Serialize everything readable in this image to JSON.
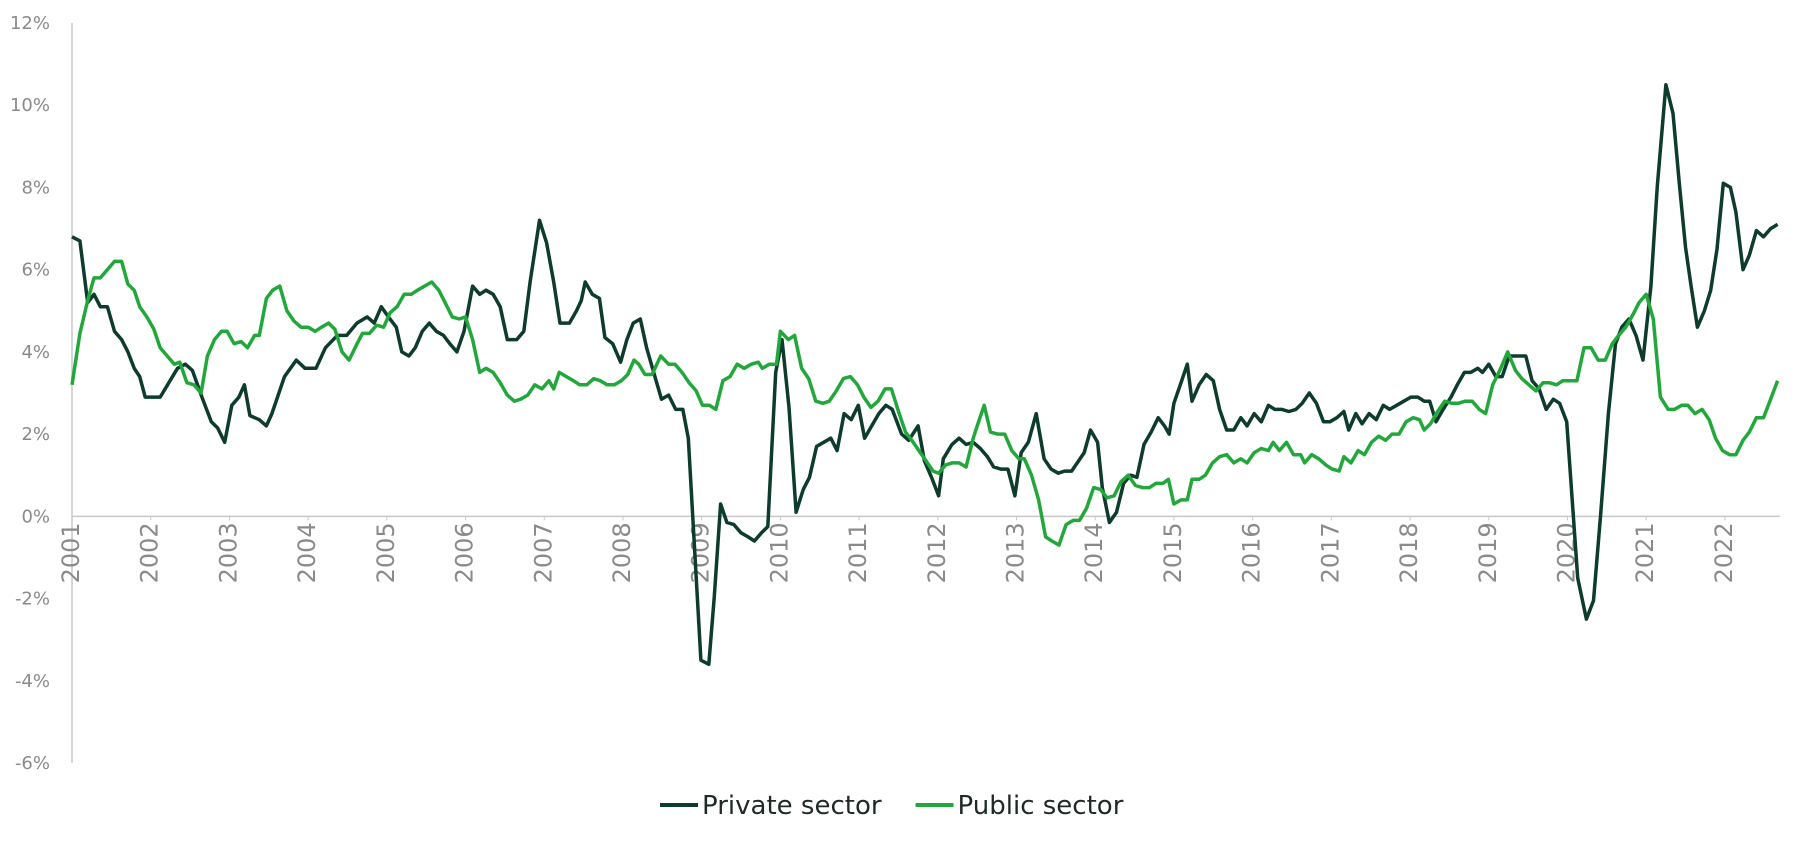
{
  "chart_data": {
    "type": "line",
    "xlim": [
      2001,
      2022.7
    ],
    "xticks": [
      2001,
      2002,
      2003,
      2004,
      2005,
      2006,
      2007,
      2008,
      2009,
      2010,
      2011,
      2012,
      2013,
      2014,
      2015,
      2016,
      2017,
      2018,
      2019,
      2020,
      2021,
      2022
    ],
    "ylim": [
      -6,
      12
    ],
    "yticks": [
      {
        "value": -6,
        "label": "-6%"
      },
      {
        "value": -4,
        "label": "-4%"
      },
      {
        "value": -2,
        "label": "-2%"
      },
      {
        "value": 0,
        "label": "0%"
      },
      {
        "value": 2,
        "label": "2%"
      },
      {
        "value": 4,
        "label": "4%"
      },
      {
        "value": 6,
        "label": "6%"
      },
      {
        "value": 8,
        "label": "8%"
      },
      {
        "value": 10,
        "label": "10%"
      },
      {
        "value": 12,
        "label": "12%"
      }
    ],
    "legend": "bottom",
    "series": [
      {
        "name": "Private sector",
        "color": "#0d3b2e",
        "x": [
          2001.0,
          2001.1,
          2001.2,
          2001.28,
          2001.36,
          2001.45,
          2001.54,
          2001.63,
          2001.71,
          2001.79,
          2001.86,
          2001.93,
          2002.12,
          2002.34,
          2002.44,
          2002.53,
          2002.65,
          2002.77,
          2002.85,
          2002.94,
          2003.03,
          2003.12,
          2003.19,
          2003.26,
          2003.38,
          2003.47,
          2003.54,
          2003.7,
          2003.85,
          2003.96,
          2004.1,
          2004.22,
          2004.37,
          2004.49,
          2004.62,
          2004.75,
          2004.84,
          2004.93,
          2005.02,
          2005.12,
          2005.19,
          2005.28,
          2005.36,
          2005.45,
          2005.54,
          2005.63,
          2005.72,
          2005.8,
          2005.89,
          2005.98,
          2006.09,
          2006.18,
          2006.26,
          2006.35,
          2006.44,
          2006.53,
          2006.65,
          2006.74,
          2006.82,
          2006.94,
          2007.03,
          2007.12,
          2007.2,
          2007.32,
          2007.41,
          2007.47,
          2007.52,
          2007.61,
          2007.7,
          2007.77,
          2007.87,
          2007.97,
          2008.05,
          2008.13,
          2008.22,
          2008.3,
          2008.39,
          2008.49,
          2008.58,
          2008.67,
          2008.76,
          2008.83,
          2008.99,
          2009.09,
          2009.16,
          2009.24,
          2009.32,
          2009.41,
          2009.5,
          2009.59,
          2009.67,
          2009.76,
          2009.84,
          2009.94,
          2010.02,
          2010.11,
          2010.2,
          2010.29,
          2010.37,
          2010.46,
          2010.55,
          2010.64,
          2010.72,
          2010.81,
          2010.9,
          2010.99,
          2011.07,
          2011.16,
          2011.25,
          2011.34,
          2011.42,
          2011.54,
          2011.63,
          2011.75,
          2011.83,
          2011.92,
          2012.01,
          2012.07,
          2012.18,
          2012.27,
          2012.36,
          2012.45,
          2012.54,
          2012.63,
          2012.71,
          2012.8,
          2012.89,
          2012.98,
          2013.06,
          2013.15,
          2013.25,
          2013.35,
          2013.44,
          2013.53,
          2013.61,
          2013.7,
          2013.79,
          2013.86,
          2013.94,
          2014.03,
          2014.09,
          2014.18,
          2014.27,
          2014.36,
          2014.45,
          2014.53,
          2014.62,
          2014.71,
          2014.8,
          2014.88,
          2014.94,
          2015.0,
          2015.09,
          2015.17,
          2015.23,
          2015.32,
          2015.41,
          2015.5,
          2015.58,
          2015.67,
          2015.76,
          2015.85,
          2015.93,
          2016.02,
          2016.11,
          2016.2,
          2016.28,
          2016.37,
          2016.46,
          2016.55,
          2016.63,
          2016.72,
          2016.81,
          2016.9,
          2016.98,
          2017.07,
          2017.16,
          2017.22,
          2017.31,
          2017.39,
          2017.48,
          2017.57,
          2017.66,
          2017.74,
          2017.83,
          2017.92,
          2018.01,
          2018.1,
          2018.18,
          2018.25,
          2018.33,
          2018.42,
          2018.52,
          2018.6,
          2018.69,
          2018.77,
          2018.86,
          2018.92,
          2019.0,
          2019.09,
          2019.17,
          2019.26,
          2019.35,
          2019.47,
          2019.55,
          2019.64,
          2019.73,
          2019.82,
          2019.9,
          2019.99,
          2020.13,
          2020.24,
          2020.33,
          2020.42,
          2020.52,
          2020.61,
          2020.69,
          2020.78,
          2020.87,
          2020.96,
          2021.06,
          2021.14,
          2021.25,
          2021.34,
          2021.42,
          2021.5,
          2021.57,
          2021.65,
          2021.74,
          2021.82,
          2021.9,
          2021.98,
          2022.07,
          2022.14,
          2022.23,
          2022.31,
          2022.4,
          2022.49,
          2022.58,
          2022.67
        ],
        "values": [
          6.8,
          6.7,
          5.2,
          5.4,
          5.1,
          5.1,
          4.5,
          4.3,
          4.0,
          3.6,
          3.4,
          2.9,
          2.9,
          3.6,
          3.7,
          3.55,
          2.9,
          2.3,
          2.15,
          1.8,
          2.7,
          2.9,
          3.2,
          2.45,
          2.35,
          2.2,
          2.5,
          3.4,
          3.8,
          3.6,
          3.6,
          4.1,
          4.4,
          4.4,
          4.7,
          4.85,
          4.7,
          5.1,
          4.85,
          4.6,
          4.0,
          3.9,
          4.1,
          4.5,
          4.7,
          4.5,
          4.4,
          4.2,
          4.0,
          4.5,
          5.6,
          5.4,
          5.5,
          5.4,
          5.1,
          4.3,
          4.3,
          4.5,
          5.7,
          7.2,
          6.65,
          5.7,
          4.7,
          4.7,
          5.0,
          5.25,
          5.7,
          5.4,
          5.3,
          4.35,
          4.2,
          3.75,
          4.3,
          4.7,
          4.8,
          4.1,
          3.5,
          2.85,
          2.95,
          2.6,
          2.6,
          1.9,
          -3.5,
          -3.6,
          -1.95,
          0.3,
          -0.15,
          -0.2,
          -0.4,
          -0.5,
          -0.6,
          -0.4,
          -0.25,
          3.5,
          4.3,
          2.65,
          0.1,
          0.65,
          0.95,
          1.7,
          1.8,
          1.9,
          1.6,
          2.5,
          2.35,
          2.7,
          1.9,
          2.2,
          2.5,
          2.7,
          2.6,
          2.0,
          1.85,
          2.2,
          1.35,
          0.95,
          0.5,
          1.4,
          1.75,
          1.9,
          1.75,
          1.8,
          1.65,
          1.45,
          1.2,
          1.15,
          1.15,
          0.5,
          1.55,
          1.8,
          2.5,
          1.4,
          1.15,
          1.05,
          1.1,
          1.1,
          1.35,
          1.55,
          2.1,
          1.8,
          0.7,
          -0.15,
          0.1,
          0.8,
          1.0,
          0.95,
          1.75,
          2.05,
          2.4,
          2.2,
          2.0,
          2.75,
          3.25,
          3.7,
          2.8,
          3.2,
          3.45,
          3.3,
          2.6,
          2.1,
          2.1,
          2.4,
          2.2,
          2.5,
          2.3,
          2.7,
          2.6,
          2.6,
          2.55,
          2.6,
          2.75,
          3.0,
          2.75,
          2.3,
          2.3,
          2.4,
          2.55,
          2.1,
          2.5,
          2.25,
          2.5,
          2.35,
          2.7,
          2.6,
          2.7,
          2.8,
          2.9,
          2.9,
          2.8,
          2.8,
          2.3,
          2.6,
          2.9,
          3.2,
          3.5,
          3.5,
          3.6,
          3.5,
          3.7,
          3.4,
          3.4,
          3.9,
          3.9,
          3.9,
          3.3,
          3.1,
          2.6,
          2.85,
          2.75,
          2.3,
          -1.5,
          -2.5,
          -2.05,
          0.0,
          2.5,
          4.2,
          4.6,
          4.8,
          4.4,
          3.8,
          5.6,
          8.0,
          10.5,
          9.8,
          8.1,
          6.55,
          5.6,
          4.6,
          5.0,
          5.5,
          6.5,
          8.1,
          8.0,
          7.4,
          6.0,
          6.35,
          6.95,
          6.8,
          7.0,
          7.1
        ]
      },
      {
        "name": "Public sector",
        "color": "#22a83a",
        "x": [
          2001.0,
          2001.1,
          2001.2,
          2001.28,
          2001.36,
          2001.45,
          2001.54,
          2001.63,
          2001.71,
          2001.79,
          2001.86,
          2001.95,
          2002.04,
          2002.12,
          2002.21,
          2002.3,
          2002.37,
          2002.46,
          2002.55,
          2002.64,
          2002.72,
          2002.81,
          2002.9,
          2002.97,
          2003.06,
          2003.15,
          2003.23,
          2003.32,
          2003.38,
          2003.47,
          2003.55,
          2003.64,
          2003.73,
          2003.82,
          2003.91,
          2004.0,
          2004.09,
          2004.17,
          2004.26,
          2004.34,
          2004.43,
          2004.52,
          2004.61,
          2004.69,
          2004.78,
          2004.87,
          2004.96,
          2005.04,
          2005.13,
          2005.22,
          2005.31,
          2005.39,
          2005.48,
          2005.57,
          2005.66,
          2005.74,
          2005.83,
          2005.92,
          2006.0,
          2006.09,
          2006.18,
          2006.26,
          2006.35,
          2006.44,
          2006.53,
          2006.62,
          2006.7,
          2006.79,
          2006.88,
          2006.97,
          2007.06,
          2007.12,
          2007.19,
          2007.28,
          2007.37,
          2007.45,
          2007.54,
          2007.63,
          2007.71,
          2007.8,
          2007.89,
          2007.98,
          2008.06,
          2008.14,
          2008.2,
          2008.28,
          2008.37,
          2008.48,
          2008.58,
          2008.66,
          2008.75,
          2008.84,
          2008.93,
          2009.01,
          2009.1,
          2009.18,
          2009.27,
          2009.36,
          2009.45,
          2009.54,
          2009.63,
          2009.72,
          2009.77,
          2009.86,
          2009.95,
          2010.0,
          2010.1,
          2010.18,
          2010.27,
          2010.36,
          2010.45,
          2010.54,
          2010.62,
          2010.71,
          2010.8,
          2010.89,
          2010.98,
          2011.06,
          2011.15,
          2011.24,
          2011.33,
          2011.41,
          2011.5,
          2011.59,
          2011.67,
          2011.76,
          2011.85,
          2011.94,
          2012.01,
          2012.1,
          2012.18,
          2012.27,
          2012.36,
          2012.45,
          2012.5,
          2012.59,
          2012.67,
          2012.76,
          2012.85,
          2012.94,
          2013.03,
          2013.1,
          2013.19,
          2013.28,
          2013.37,
          2013.45,
          2013.54,
          2013.63,
          2013.72,
          2013.8,
          2013.89,
          2013.98,
          2014.07,
          2014.15,
          2014.24,
          2014.33,
          2014.42,
          2014.51,
          2014.6,
          2014.69,
          2014.77,
          2014.86,
          2014.93,
          2015.0,
          2015.09,
          2015.17,
          2015.23,
          2015.32,
          2015.4,
          2015.49,
          2015.58,
          2015.67,
          2015.76,
          2015.85,
          2015.93,
          2016.02,
          2016.11,
          2016.2,
          2016.26,
          2016.34,
          2016.43,
          2016.52,
          2016.61,
          2016.66,
          2016.75,
          2016.84,
          2016.93,
          2017.01,
          2017.1,
          2017.16,
          2017.25,
          2017.34,
          2017.42,
          2017.51,
          2017.6,
          2017.69,
          2017.77,
          2017.86,
          2017.95,
          2018.04,
          2018.12,
          2018.18,
          2018.26,
          2018.35,
          2018.44,
          2018.53,
          2018.61,
          2018.7,
          2018.79,
          2018.88,
          2018.96,
          2019.05,
          2019.14,
          2019.24,
          2019.34,
          2019.42,
          2019.51,
          2019.6,
          2019.69,
          2019.77,
          2019.86,
          2019.94,
          2020.03,
          2020.12,
          2020.21,
          2020.3,
          2020.39,
          2020.48,
          2020.57,
          2020.65,
          2020.74,
          2020.83,
          2020.91,
          2021.0,
          2021.09,
          2021.18,
          2021.28,
          2021.36,
          2021.45,
          2021.53,
          2021.62,
          2021.71,
          2021.8,
          2021.88,
          2021.97,
          2022.06,
          2022.14,
          2022.23,
          2022.31,
          2022.4,
          2022.49,
          2022.58,
          2022.67
        ],
        "values": [
          3.2,
          4.45,
          5.25,
          5.8,
          5.8,
          6.0,
          6.2,
          6.2,
          5.65,
          5.5,
          5.1,
          4.85,
          4.55,
          4.1,
          3.9,
          3.7,
          3.75,
          3.25,
          3.2,
          3.0,
          3.9,
          4.3,
          4.5,
          4.5,
          4.2,
          4.25,
          4.1,
          4.4,
          4.4,
          5.3,
          5.5,
          5.6,
          5.0,
          4.75,
          4.6,
          4.6,
          4.5,
          4.6,
          4.7,
          4.55,
          4.0,
          3.8,
          4.15,
          4.45,
          4.45,
          4.65,
          4.6,
          4.95,
          5.1,
          5.4,
          5.4,
          5.5,
          5.6,
          5.7,
          5.5,
          5.2,
          4.85,
          4.8,
          4.85,
          4.3,
          3.5,
          3.6,
          3.5,
          3.25,
          2.95,
          2.8,
          2.85,
          2.95,
          3.2,
          3.1,
          3.3,
          3.1,
          3.5,
          3.4,
          3.3,
          3.2,
          3.2,
          3.35,
          3.3,
          3.2,
          3.2,
          3.3,
          3.45,
          3.8,
          3.7,
          3.45,
          3.45,
          3.9,
          3.7,
          3.7,
          3.5,
          3.25,
          3.05,
          2.7,
          2.7,
          2.6,
          3.3,
          3.4,
          3.7,
          3.6,
          3.7,
          3.75,
          3.6,
          3.7,
          3.7,
          4.5,
          4.3,
          4.4,
          3.6,
          3.35,
          2.8,
          2.75,
          2.8,
          3.05,
          3.35,
          3.4,
          3.2,
          2.9,
          2.65,
          2.8,
          3.1,
          3.1,
          2.55,
          2.05,
          1.85,
          1.6,
          1.35,
          1.1,
          1.05,
          1.25,
          1.3,
          1.3,
          1.2,
          1.9,
          2.2,
          2.7,
          2.05,
          2.0,
          2.0,
          1.6,
          1.4,
          1.4,
          1.0,
          0.4,
          -0.5,
          -0.6,
          -0.7,
          -0.2,
          -0.1,
          -0.1,
          0.2,
          0.7,
          0.65,
          0.45,
          0.5,
          0.85,
          1.0,
          0.75,
          0.7,
          0.7,
          0.8,
          0.8,
          0.9,
          0.3,
          0.4,
          0.4,
          0.9,
          0.9,
          1.0,
          1.3,
          1.45,
          1.5,
          1.3,
          1.4,
          1.3,
          1.55,
          1.65,
          1.6,
          1.8,
          1.6,
          1.8,
          1.5,
          1.5,
          1.3,
          1.5,
          1.4,
          1.25,
          1.15,
          1.1,
          1.45,
          1.3,
          1.6,
          1.5,
          1.8,
          1.95,
          1.85,
          2.0,
          2.0,
          2.3,
          2.4,
          2.35,
          2.1,
          2.25,
          2.55,
          2.8,
          2.75,
          2.75,
          2.8,
          2.8,
          2.6,
          2.5,
          3.2,
          3.55,
          4.0,
          3.55,
          3.35,
          3.2,
          3.05,
          3.25,
          3.25,
          3.2,
          3.3,
          3.3,
          3.3,
          4.1,
          4.1,
          3.8,
          3.8,
          4.2,
          4.4,
          4.6,
          4.9,
          5.2,
          5.4,
          4.8,
          2.9,
          2.6,
          2.6,
          2.7,
          2.7,
          2.5,
          2.6,
          2.35,
          1.9,
          1.6,
          1.5,
          1.5,
          1.85,
          2.05,
          2.4,
          2.4,
          2.85,
          3.3
        ]
      }
    ]
  }
}
